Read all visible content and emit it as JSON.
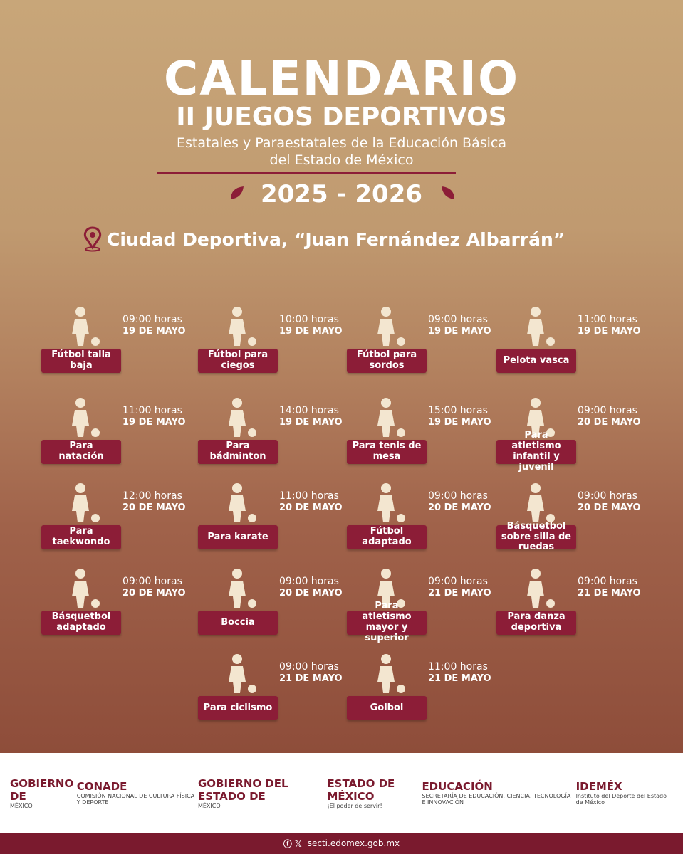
{
  "header": {
    "title": "CALENDARIO",
    "subtitle": "II JUEGOS DEPORTIVOS",
    "description_1": "Estatales y Paraestatales de la Educación Básica",
    "description_2": "del Estado de México",
    "season": "2025 - 2026",
    "venue": "Ciudad Deportiva, “Juan Fernández Albarrán”"
  },
  "events": [
    {
      "name": "Fútbol talla baja",
      "time": "09:00 horas",
      "date": "19 DE MAYO"
    },
    {
      "name": "Fútbol para ciegos",
      "time": "10:00 horas",
      "date": "19 DE MAYO"
    },
    {
      "name": "Fútbol para sordos",
      "time": "09:00 horas",
      "date": "19 DE MAYO"
    },
    {
      "name": "Pelota vasca",
      "time": "11:00 horas",
      "date": "19 DE MAYO"
    },
    {
      "name": "Para natación",
      "time": "11:00 horas",
      "date": "19 DE MAYO"
    },
    {
      "name": "Para bádminton",
      "time": "14:00 horas",
      "date": "19 DE MAYO"
    },
    {
      "name": "Para tenis de mesa",
      "time": "15:00 horas",
      "date": "19 DE MAYO"
    },
    {
      "name": "Para atletismo infantil y juvenil",
      "time": "09:00 horas",
      "date": "20 DE MAYO"
    },
    {
      "name": "Para taekwondo",
      "time": "12:00 horas",
      "date": "20 DE MAYO"
    },
    {
      "name": "Para karate",
      "time": "11:00 horas",
      "date": "20 DE MAYO"
    },
    {
      "name": "Fútbol adaptado",
      "time": "09:00 horas",
      "date": "20 DE MAYO"
    },
    {
      "name": "Básquetbol sobre silla de ruedas",
      "time": "09:00 horas",
      "date": "20 DE MAYO"
    },
    {
      "name": "Básquetbol adaptado",
      "time": "09:00 horas",
      "date": "20 DE MAYO"
    },
    {
      "name": "Boccia",
      "time": "09:00 horas",
      "date": "20 DE MAYO"
    },
    {
      "name": "Para atletismo mayor y superior",
      "time": "09:00 horas",
      "date": "21 DE MAYO"
    },
    {
      "name": "Para danza deportiva",
      "time": "09:00 horas",
      "date": "21 DE MAYO"
    },
    {
      "name": "Para ciclismo",
      "time": "09:00 horas",
      "date": "21 DE MAYO"
    },
    {
      "name": "Golbol",
      "time": "11:00 horas",
      "date": "21 DE MAYO"
    }
  ],
  "footer": {
    "logos": [
      {
        "main": "GOBIERNO DE",
        "sub": "MÉXICO"
      },
      {
        "main": "CONADE",
        "sub": "COMISIÓN NACIONAL DE CULTURA FÍSICA Y DEPORTE"
      },
      {
        "main": "GOBIERNO DEL ESTADO DE",
        "sub": "MÉXICO"
      },
      {
        "main": "ESTADO DE MÉXICO",
        "sub": "¡El poder de servir!"
      },
      {
        "main": "EDUCACIÓN",
        "sub": "SECRETARÍA DE EDUCACIÓN, CIENCIA, TECNOLOGÍA E INNOVACIÓN"
      },
      {
        "main": "IDEMÉX",
        "sub": "Instituto del Deporte del Estado de México"
      }
    ],
    "website": "secti.edomex.gob.mx"
  }
}
